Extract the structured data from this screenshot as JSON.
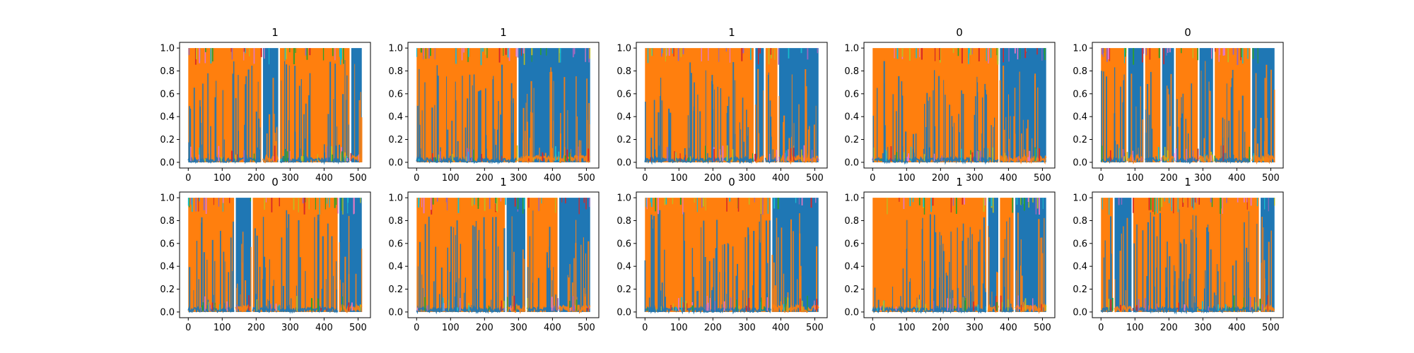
{
  "chart_data": [
    {
      "type": "line",
      "title": "1",
      "x_range": [
        0,
        511
      ],
      "ylim": [
        0,
        1
      ],
      "xticks": [
        0,
        100,
        200,
        300,
        400,
        500
      ],
      "yticks": [
        "0.0",
        "0.2",
        "0.4",
        "0.6",
        "0.8",
        "1.0"
      ],
      "series": [
        {
          "color": "#1f77b4",
          "regions": [
            [
              220,
              265
            ],
            [
              480,
              511
            ]
          ]
        },
        {
          "color": "#ff7f0e",
          "regions": [
            [
              0,
              215
            ],
            [
              270,
              475
            ]
          ]
        }
      ],
      "accent_colors": [
        "#17becf",
        "#bcbd22",
        "#2ca02c",
        "#d62728",
        "#9467bd",
        "#e377c2"
      ]
    },
    {
      "type": "line",
      "title": "1",
      "x_range": [
        0,
        511
      ],
      "ylim": [
        0,
        1
      ],
      "xticks": [
        0,
        100,
        200,
        300,
        400,
        500
      ],
      "yticks": [
        "0.0",
        "0.2",
        "0.4",
        "0.6",
        "0.8",
        "1.0"
      ],
      "series": [
        {
          "color": "#1f77b4",
          "regions": [
            [
              300,
              511
            ]
          ]
        },
        {
          "color": "#ff7f0e",
          "regions": [
            [
              0,
              295
            ]
          ]
        }
      ],
      "accent_colors": [
        "#17becf",
        "#bcbd22",
        "#2ca02c",
        "#d62728",
        "#9467bd",
        "#e377c2"
      ]
    },
    {
      "type": "line",
      "title": "1",
      "x_range": [
        0,
        511
      ],
      "ylim": [
        0,
        1
      ],
      "xticks": [
        0,
        100,
        200,
        300,
        400,
        500
      ],
      "yticks": [
        "0.0",
        "0.2",
        "0.4",
        "0.6",
        "0.8",
        "1.0"
      ],
      "series": [
        {
          "color": "#1f77b4",
          "regions": [
            [
              325,
              350
            ],
            [
              395,
              511
            ]
          ]
        },
        {
          "color": "#ff7f0e",
          "regions": [
            [
              0,
              320
            ],
            [
              355,
              390
            ]
          ]
        }
      ],
      "accent_colors": [
        "#17becf",
        "#bcbd22",
        "#2ca02c",
        "#d62728",
        "#9467bd",
        "#e377c2"
      ]
    },
    {
      "type": "line",
      "title": "0",
      "x_range": [
        0,
        511
      ],
      "ylim": [
        0,
        1
      ],
      "xticks": [
        0,
        100,
        200,
        300,
        400,
        500
      ],
      "yticks": [
        "0.0",
        "0.2",
        "0.4",
        "0.6",
        "0.8",
        "1.0"
      ],
      "series": [
        {
          "color": "#1f77b4",
          "regions": [
            [
              375,
              511
            ]
          ]
        },
        {
          "color": "#ff7f0e",
          "regions": [
            [
              0,
              370
            ]
          ]
        }
      ],
      "accent_colors": [
        "#17becf",
        "#bcbd22",
        "#2ca02c",
        "#d62728",
        "#9467bd",
        "#e377c2"
      ]
    },
    {
      "type": "line",
      "title": "0",
      "x_range": [
        0,
        511
      ],
      "ylim": [
        0,
        1
      ],
      "xticks": [
        0,
        100,
        200,
        300,
        400,
        500
      ],
      "yticks": [
        "0.0",
        "0.2",
        "0.4",
        "0.6",
        "0.8",
        "1.0"
      ],
      "series": [
        {
          "color": "#1f77b4",
          "regions": [
            [
              80,
              125
            ],
            [
              180,
              215
            ],
            [
              290,
              330
            ],
            [
              445,
              511
            ]
          ]
        },
        {
          "color": "#ff7f0e",
          "regions": [
            [
              0,
              75
            ],
            [
              130,
              175
            ],
            [
              220,
              285
            ],
            [
              335,
              440
            ]
          ]
        }
      ],
      "accent_colors": [
        "#17becf",
        "#bcbd22",
        "#2ca02c",
        "#d62728",
        "#9467bd",
        "#e377c2"
      ]
    },
    {
      "type": "line",
      "title": "0",
      "x_range": [
        0,
        511
      ],
      "ylim": [
        0,
        1
      ],
      "xticks": [
        0,
        100,
        200,
        300,
        400,
        500
      ],
      "yticks": [
        "0.0",
        "0.2",
        "0.4",
        "0.6",
        "0.8",
        "1.0"
      ],
      "series": [
        {
          "color": "#1f77b4",
          "regions": [
            [
              140,
              185
            ],
            [
              445,
              511
            ]
          ]
        },
        {
          "color": "#ff7f0e",
          "regions": [
            [
              0,
              135
            ],
            [
              190,
              440
            ]
          ]
        }
      ],
      "accent_colors": [
        "#17becf",
        "#bcbd22",
        "#2ca02c",
        "#d62728",
        "#9467bd",
        "#e377c2"
      ]
    },
    {
      "type": "line",
      "title": "1",
      "x_range": [
        0,
        511
      ],
      "ylim": [
        0,
        1
      ],
      "xticks": [
        0,
        100,
        200,
        300,
        400,
        500
      ],
      "yticks": [
        "0.0",
        "0.2",
        "0.4",
        "0.6",
        "0.8",
        "1.0"
      ],
      "series": [
        {
          "color": "#1f77b4",
          "regions": [
            [
              265,
              320
            ],
            [
              420,
              511
            ]
          ]
        },
        {
          "color": "#ff7f0e",
          "regions": [
            [
              0,
              260
            ],
            [
              325,
              415
            ]
          ]
        }
      ],
      "accent_colors": [
        "#17becf",
        "#bcbd22",
        "#2ca02c",
        "#d62728",
        "#9467bd",
        "#e377c2"
      ]
    },
    {
      "type": "line",
      "title": "0",
      "x_range": [
        0,
        511
      ],
      "ylim": [
        0,
        1
      ],
      "xticks": [
        0,
        100,
        200,
        300,
        400,
        500
      ],
      "yticks": [
        "0.0",
        "0.2",
        "0.4",
        "0.6",
        "0.8",
        "1.0"
      ],
      "series": [
        {
          "color": "#1f77b4",
          "regions": [
            [
              375,
              511
            ]
          ]
        },
        {
          "color": "#ff7f0e",
          "regions": [
            [
              0,
              370
            ]
          ]
        }
      ],
      "accent_colors": [
        "#17becf",
        "#bcbd22",
        "#2ca02c",
        "#d62728",
        "#9467bd",
        "#e377c2"
      ]
    },
    {
      "type": "line",
      "title": "1",
      "x_range": [
        0,
        511
      ],
      "ylim": [
        0,
        1
      ],
      "xticks": [
        0,
        100,
        200,
        300,
        400,
        500
      ],
      "yticks": [
        "0.0",
        "0.2",
        "0.4",
        "0.6",
        "0.8",
        "1.0"
      ],
      "series": [
        {
          "color": "#1f77b4",
          "regions": [
            [
              340,
              370
            ],
            [
              420,
              511
            ]
          ]
        },
        {
          "color": "#ff7f0e",
          "regions": [
            [
              0,
              335
            ],
            [
              375,
              415
            ]
          ]
        }
      ],
      "accent_colors": [
        "#17becf",
        "#bcbd22",
        "#2ca02c",
        "#d62728",
        "#9467bd",
        "#e377c2"
      ]
    },
    {
      "type": "line",
      "title": "1",
      "x_range": [
        0,
        511
      ],
      "ylim": [
        0,
        1
      ],
      "xticks": [
        0,
        100,
        200,
        300,
        400,
        500
      ],
      "yticks": [
        "0.0",
        "0.2",
        "0.4",
        "0.6",
        "0.8",
        "1.0"
      ],
      "series": [
        {
          "color": "#1f77b4",
          "regions": [
            [
              40,
              90
            ],
            [
              470,
              511
            ]
          ]
        },
        {
          "color": "#ff7f0e",
          "regions": [
            [
              0,
              35
            ],
            [
              95,
              465
            ]
          ]
        }
      ],
      "accent_colors": [
        "#17becf",
        "#bcbd22",
        "#2ca02c",
        "#d62728",
        "#9467bd",
        "#e377c2"
      ]
    }
  ]
}
